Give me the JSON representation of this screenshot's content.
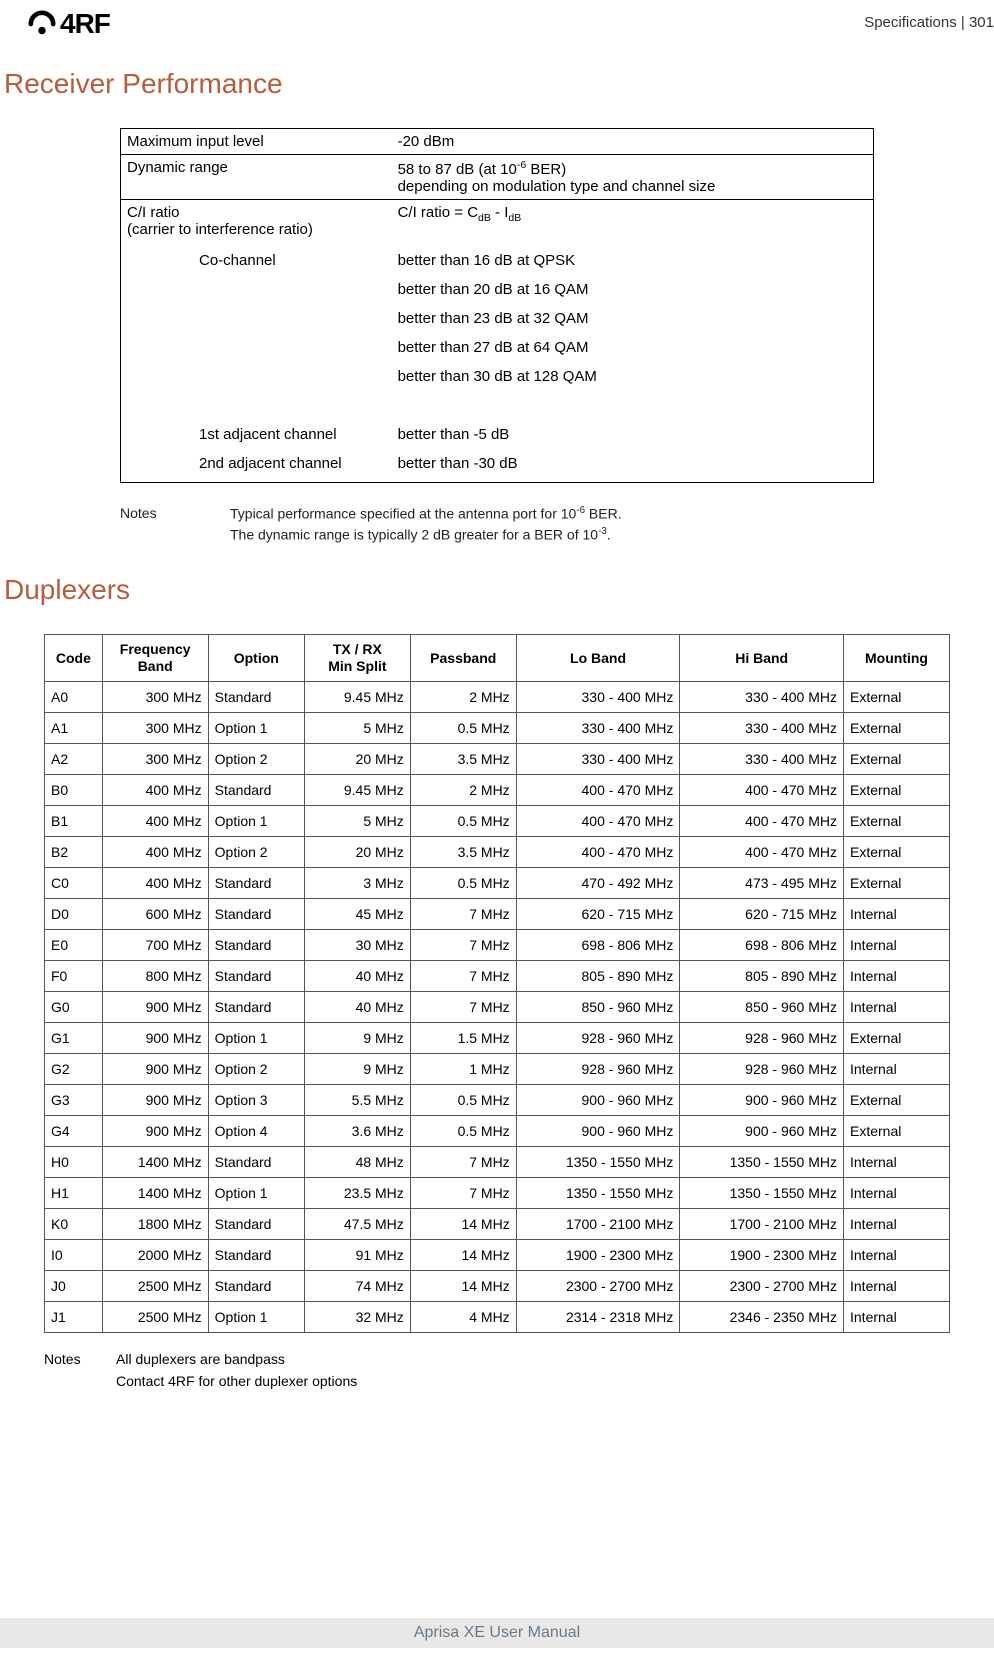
{
  "header": {
    "logo_text": "4RF",
    "meta": "Specifications  |  301"
  },
  "section1": {
    "title": "Receiver Performance",
    "rows": [
      {
        "label": "Maximum input level",
        "value": "-20 dBm"
      },
      {
        "label_html": "Dynamic range",
        "value_html": "58 to 87 dB (at 10<sup>-6</sup> BER)<br>depending on modulation type and channel size"
      },
      {
        "label_html": "C/I ratio<br>(carrier to interference ratio)",
        "value_html": "C/I ratio =  C<sub>dB</sub> - I<sub>dB</sub>"
      }
    ],
    "ci_subs": [
      {
        "label": "Co-channel",
        "values": [
          "better than 16 dB at QPSK",
          "better than 20 dB at 16 QAM",
          "better than 23 dB at 32 QAM",
          "better than 27 dB at 64 QAM",
          "better than 30 dB at 128 QAM",
          ""
        ]
      },
      {
        "label": "1st adjacent channel",
        "values": [
          "better than -5 dB"
        ]
      },
      {
        "label": "2nd adjacent channel",
        "values": [
          "better than -30 dB"
        ]
      }
    ],
    "notes_label": "Notes",
    "notes": [
      "Typical performance specified at the antenna port for 10<sup>-6</sup> BER.",
      "The dynamic range is typically 2 dB greater for a BER of 10<sup>-3</sup>."
    ]
  },
  "section2": {
    "title": "Duplexers",
    "columns": [
      "Code",
      "Frequency Band",
      "Option",
      "TX / RX Min Split",
      "Passband",
      "Lo Band",
      "Hi Band",
      "Mounting"
    ],
    "col_widths": [
      "6%",
      "11%",
      "10%",
      "11%",
      "11%",
      "17%",
      "17%",
      "11%"
    ],
    "col_align": [
      "l",
      "r",
      "l",
      "r",
      "r",
      "r",
      "r",
      "l"
    ],
    "rows": [
      [
        "A0",
        "300 MHz",
        "Standard",
        "9.45 MHz",
        "2 MHz",
        "330 - 400 MHz",
        "330 - 400 MHz",
        "External"
      ],
      [
        "A1",
        "300 MHz",
        "Option 1",
        "5 MHz",
        "0.5 MHz",
        "330 - 400 MHz",
        "330 - 400 MHz",
        "External"
      ],
      [
        "A2",
        "300 MHz",
        "Option 2",
        "20 MHz",
        "3.5 MHz",
        "330 - 400 MHz",
        "330 - 400 MHz",
        "External"
      ],
      [
        "B0",
        "400 MHz",
        "Standard",
        "9.45 MHz",
        "2 MHz",
        "400 - 470 MHz",
        "400 - 470 MHz",
        "External"
      ],
      [
        "B1",
        "400 MHz",
        "Option 1",
        "5 MHz",
        "0.5 MHz",
        "400 - 470 MHz",
        "400 - 470 MHz",
        "External"
      ],
      [
        "B2",
        "400 MHz",
        "Option 2",
        "20 MHz",
        "3.5 MHz",
        "400 - 470 MHz",
        "400 - 470 MHz",
        "External"
      ],
      [
        "C0",
        "400 MHz",
        "Standard",
        "3 MHz",
        "0.5 MHz",
        "470 - 492 MHz",
        "473 - 495 MHz",
        "External"
      ],
      [
        "D0",
        "600 MHz",
        "Standard",
        "45 MHz",
        "7 MHz",
        "620 - 715 MHz",
        "620 - 715 MHz",
        "Internal"
      ],
      [
        "E0",
        "700 MHz",
        "Standard",
        "30 MHz",
        "7 MHz",
        "698 - 806 MHz",
        "698 - 806 MHz",
        "Internal"
      ],
      [
        "F0",
        "800 MHz",
        "Standard",
        "40 MHz",
        "7 MHz",
        "805 - 890 MHz",
        "805 - 890 MHz",
        "Internal"
      ],
      [
        "G0",
        "900 MHz",
        "Standard",
        "40 MHz",
        "7 MHz",
        "850 - 960 MHz",
        "850 - 960 MHz",
        "Internal"
      ],
      [
        "G1",
        "900 MHz",
        "Option 1",
        "9 MHz",
        "1.5 MHz",
        "928 - 960 MHz",
        "928 - 960 MHz",
        "External"
      ],
      [
        "G2",
        "900 MHz",
        "Option 2",
        "9 MHz",
        "1 MHz",
        "928 - 960 MHz",
        "928 - 960 MHz",
        "Internal"
      ],
      [
        "G3",
        "900 MHz",
        "Option 3",
        "5.5 MHz",
        "0.5 MHz",
        "900 - 960 MHz",
        "900 - 960 MHz",
        "External"
      ],
      [
        "G4",
        "900 MHz",
        "Option 4",
        "3.6 MHz",
        "0.5 MHz",
        "900 - 960 MHz",
        "900 - 960 MHz",
        "External"
      ],
      [
        "H0",
        "1400 MHz",
        "Standard",
        "48 MHz",
        "7 MHz",
        "1350 - 1550 MHz",
        "1350 - 1550 MHz",
        "Internal"
      ],
      [
        "H1",
        "1400 MHz",
        "Option 1",
        "23.5 MHz",
        "7 MHz",
        "1350 - 1550 MHz",
        "1350 - 1550 MHz",
        "Internal"
      ],
      [
        "K0",
        "1800 MHz",
        "Standard",
        "47.5 MHz",
        "14 MHz",
        "1700 - 2100 MHz",
        "1700 - 2100 MHz",
        "Internal"
      ],
      [
        "I0",
        "2000 MHz",
        "Standard",
        "91 MHz",
        "14 MHz",
        "1900 - 2300 MHz",
        "1900 - 2300 MHz",
        "Internal"
      ],
      [
        "J0",
        "2500 MHz",
        "Standard",
        "74 MHz",
        "14 MHz",
        "2300 - 2700 MHz",
        "2300 - 2700 MHz",
        "Internal"
      ],
      [
        "J1",
        "2500 MHz",
        "Option 1",
        "32 MHz",
        "4 MHz",
        "2314 - 2318 MHz",
        "2346 - 2350 MHz",
        "Internal"
      ]
    ],
    "notes_label": "Notes",
    "notes": [
      "All duplexers are bandpass",
      "Contact 4RF for other duplexer options"
    ]
  },
  "footer": "Aprisa XE User Manual"
}
